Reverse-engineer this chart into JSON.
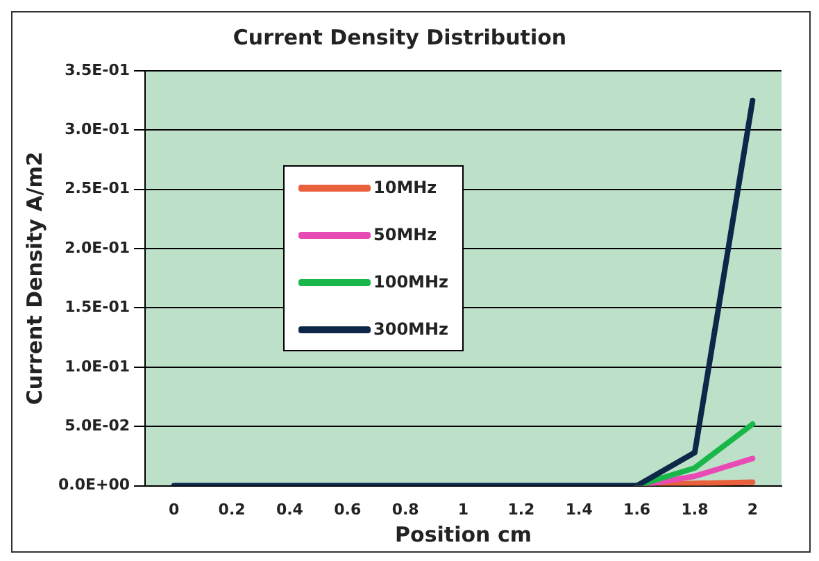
{
  "chart_data": {
    "type": "line",
    "title": "Current Density Distribution",
    "xlabel": "Position cm",
    "ylabel": "Current Density A/m2",
    "categories": [
      "0",
      "0.2",
      "0.4",
      "0.6",
      "0.8",
      "1",
      "1.2",
      "1.4",
      "1.6",
      "1.8",
      "2"
    ],
    "series": [
      {
        "name": "10MHz",
        "color": "#e8603c",
        "values": [
          null,
          null,
          null,
          null,
          null,
          null,
          null,
          null,
          0,
          0.002,
          0.003
        ]
      },
      {
        "name": "50MHz",
        "color": "#e84cb4",
        "values": [
          null,
          null,
          null,
          null,
          null,
          null,
          null,
          null,
          0,
          0.008,
          0.023
        ]
      },
      {
        "name": "100MHz",
        "color": "#19b64a",
        "values": [
          null,
          null,
          null,
          null,
          null,
          null,
          null,
          null,
          0,
          0.015,
          0.052
        ]
      },
      {
        "name": "300MHz",
        "color": "#0c2748",
        "values": [
          0,
          0,
          0,
          0,
          0,
          0,
          0,
          0,
          0,
          0.028,
          0.325
        ]
      }
    ],
    "ylim": [
      0,
      0.35
    ],
    "yticks": [
      {
        "value": 0,
        "label": "0.0E+00"
      },
      {
        "value": 0.05,
        "label": "5.0E-02"
      },
      {
        "value": 0.1,
        "label": "1.0E-01"
      },
      {
        "value": 0.15,
        "label": "1.5E-01"
      },
      {
        "value": 0.2,
        "label": "2.0E-01"
      },
      {
        "value": 0.25,
        "label": "2.5E-01"
      },
      {
        "value": 0.3,
        "label": "3.0E-01"
      },
      {
        "value": 0.35,
        "label": "3.5E-01"
      }
    ],
    "grid": "y",
    "legend": "top left",
    "marker": "none",
    "line_style": "solid"
  }
}
